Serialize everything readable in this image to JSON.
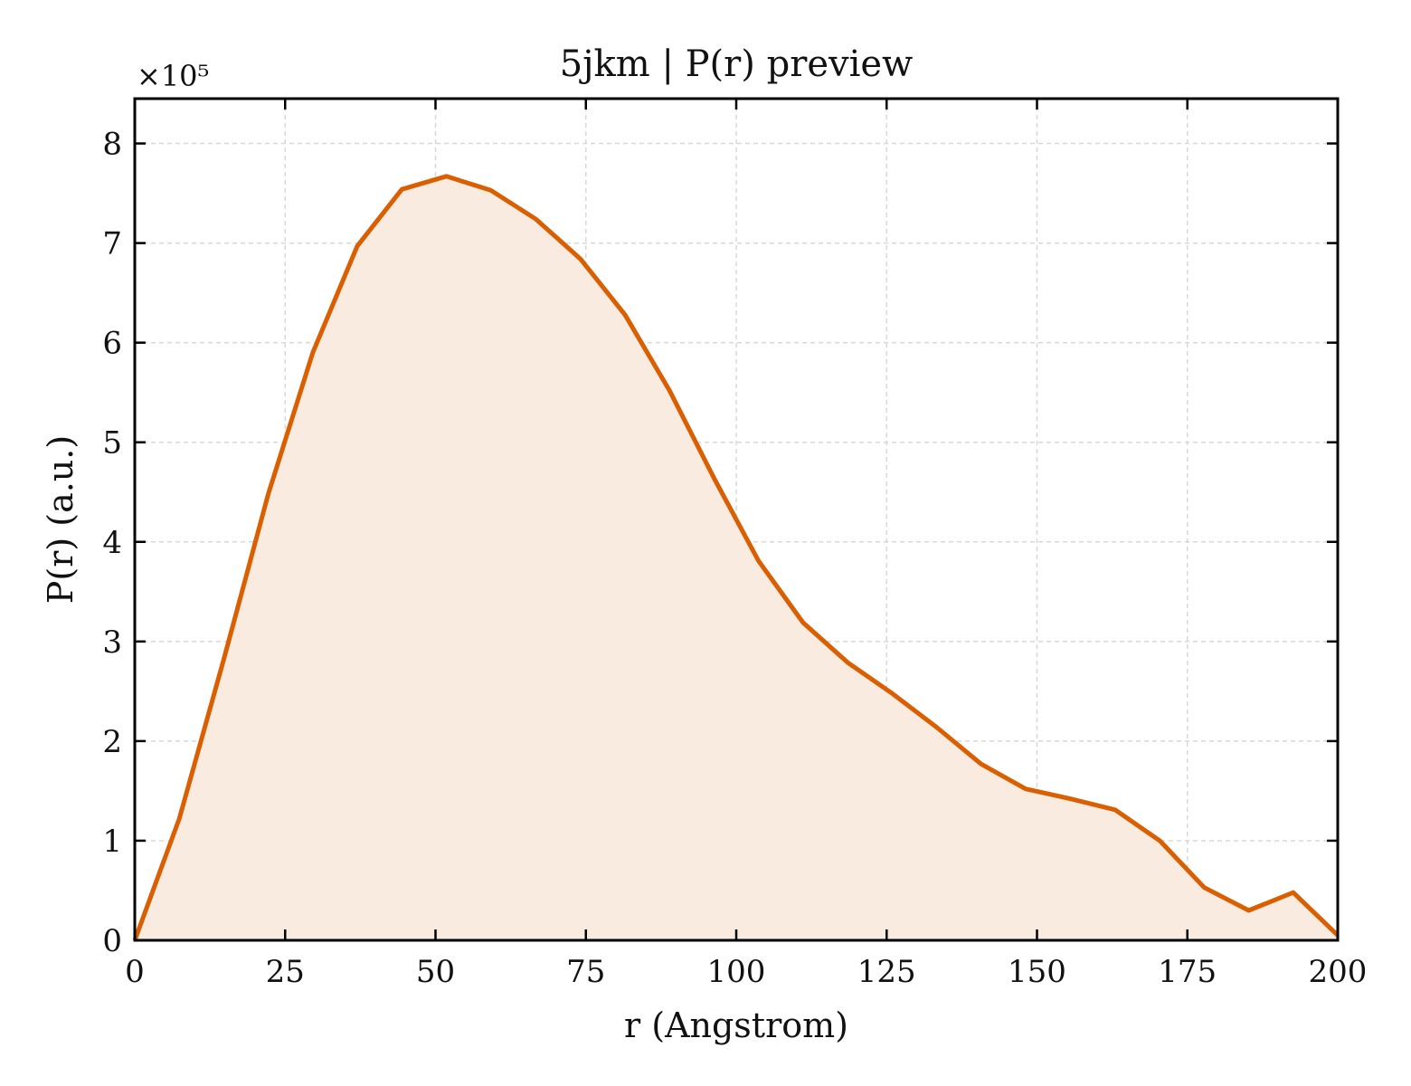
{
  "chart_data": {
    "type": "area",
    "title": "5jkm | P(r) preview",
    "xlabel": "r (Angstrom)",
    "ylabel": "P(r) (a.u.)",
    "y_multiplier": "×10⁵",
    "xlim": [
      0,
      200
    ],
    "ylim": [
      0,
      8.45
    ],
    "xticks": [
      0,
      25,
      50,
      75,
      100,
      125,
      150,
      175,
      200
    ],
    "yticks": [
      0,
      1,
      2,
      3,
      4,
      5,
      6,
      7,
      8
    ],
    "grid": true,
    "line_color": "#d95f02",
    "fill_color": "#f9ebe0",
    "series": [
      {
        "x": [
          0,
          7.4,
          14.8,
          22.2,
          29.6,
          37.0,
          44.4,
          51.8,
          59.2,
          66.7,
          74.1,
          81.5,
          88.9,
          96.3,
          103.7,
          111.1,
          118.5,
          125.9,
          133.3,
          140.7,
          148.1,
          155.6,
          163.0,
          170.4,
          177.8,
          185.2,
          192.6,
          200
        ],
        "y": [
          0.0,
          1.22,
          2.82,
          4.48,
          5.9,
          6.97,
          7.54,
          7.67,
          7.53,
          7.24,
          6.84,
          6.28,
          5.52,
          4.64,
          3.81,
          3.19,
          2.79,
          2.48,
          2.14,
          1.77,
          1.52,
          1.42,
          1.31,
          1.0,
          0.53,
          0.3,
          0.48,
          0.05
        ]
      }
    ]
  }
}
